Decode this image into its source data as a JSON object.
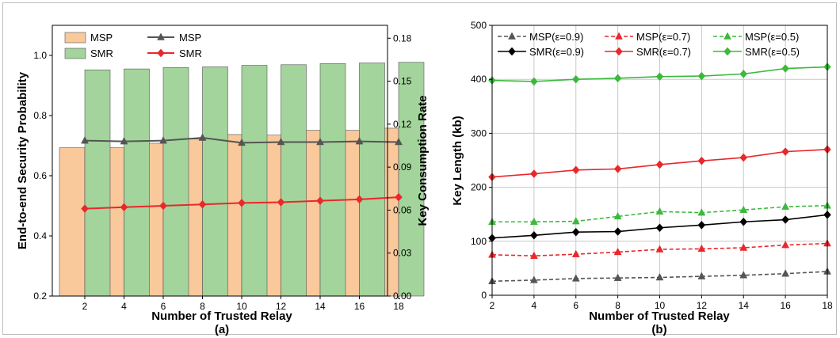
{
  "chart_data": [
    {
      "panel": "(a)",
      "type": "bar",
      "x": [
        2,
        4,
        6,
        8,
        10,
        12,
        14,
        16,
        18
      ],
      "xlabel": "Number of Trusted Relay",
      "ylabel_left": "End-to-end Security Probability",
      "ylabel_right": "Key Consumption Rate",
      "ylim_left": [
        0.2,
        1.1
      ],
      "ylim_right": [
        0.0,
        0.189
      ],
      "yticks_left": [
        "0.2",
        "0.4",
        "0.6",
        "0.8",
        "1.0"
      ],
      "yticks_right": [
        "0.00",
        "0.03",
        "0.06",
        "0.09",
        "0.12",
        "0.15",
        "0.18"
      ],
      "grid": false,
      "legend_position": "top-left",
      "bars": [
        {
          "name": "MSP",
          "axis": "left",
          "color": "#f9c89b",
          "values": [
            0.693,
            0.693,
            0.708,
            0.722,
            0.737,
            0.735,
            0.751,
            0.751,
            0.758
          ]
        },
        {
          "name": "SMR",
          "axis": "left",
          "color": "#a3d49b",
          "values": [
            0.952,
            0.955,
            0.96,
            0.962,
            0.967,
            0.969,
            0.973,
            0.975,
            0.977
          ]
        }
      ],
      "lines": [
        {
          "name": "MSP",
          "axis": "right",
          "color": "#555555",
          "marker": "triangle",
          "values": [
            0.1085,
            0.108,
            0.1085,
            0.1105,
            0.107,
            0.1075,
            0.1075,
            0.108,
            0.1075
          ]
        },
        {
          "name": "SMR",
          "axis": "right",
          "color": "#e8282b",
          "marker": "diamond",
          "values": [
            0.061,
            0.062,
            0.063,
            0.064,
            0.065,
            0.0655,
            0.0665,
            0.0675,
            0.069
          ]
        }
      ]
    },
    {
      "panel": "(b)",
      "type": "line",
      "x": [
        2,
        4,
        6,
        8,
        10,
        12,
        14,
        16,
        18
      ],
      "xlabel": "Number of Trusted Relay",
      "ylabel": "Key Length (kb)",
      "xlim": [
        2,
        18
      ],
      "ylim": [
        0,
        500
      ],
      "yticks": [
        "0",
        "100",
        "200",
        "300",
        "400",
        "500"
      ],
      "grid": true,
      "legend_position": "top",
      "series": [
        {
          "name": "MSP(ε=0.9)",
          "color": "#555555",
          "dashed": true,
          "marker": "triangle",
          "values": [
            26,
            28,
            31,
            32,
            33,
            35,
            37,
            40,
            44
          ]
        },
        {
          "name": "MSP(ε=0.7)",
          "color": "#e8282b",
          "dashed": true,
          "marker": "triangle",
          "values": [
            75,
            73,
            76,
            80,
            85,
            86,
            88,
            93,
            96
          ]
        },
        {
          "name": "MSP(ε=0.5)",
          "color": "#3cb93c",
          "dashed": true,
          "marker": "triangle",
          "values": [
            136,
            136,
            137,
            146,
            155,
            153,
            158,
            164,
            166
          ]
        },
        {
          "name": "SMR(ε=0.9)",
          "color": "#000000",
          "dashed": false,
          "marker": "diamond",
          "values": [
            106,
            111,
            117,
            118,
            125,
            130,
            136,
            140,
            149
          ]
        },
        {
          "name": "SMR(ε=0.7)",
          "color": "#e8282b",
          "dashed": false,
          "marker": "diamond",
          "values": [
            219,
            225,
            232,
            234,
            242,
            249,
            255,
            266,
            270
          ]
        },
        {
          "name": "SMR(ε=0.5)",
          "color": "#3cb93c",
          "dashed": false,
          "marker": "diamond",
          "values": [
            398,
            396,
            400,
            402,
            405,
            406,
            410,
            420,
            423
          ]
        }
      ]
    }
  ]
}
